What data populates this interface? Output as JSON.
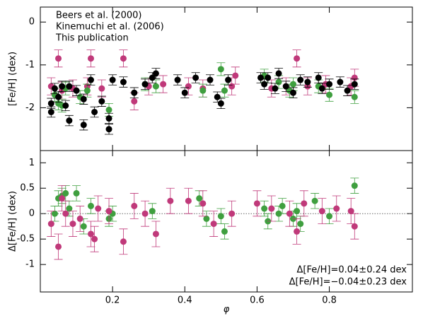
{
  "chart_data": [
    {
      "type": "scatter",
      "ylabel": "[Fe/H] (dex)",
      "xlim": [
        0,
        1.03
      ],
      "ylim": [
        -3.0,
        0.35
      ],
      "xticks": [
        0.2,
        0.4,
        0.6,
        0.8
      ],
      "xtick_labels": false,
      "yticks": [
        0,
        -1,
        -2
      ],
      "legend": "top-left",
      "series": [
        {
          "name": "Beers et al. (2000)",
          "color": "#c0397a",
          "x": [
            0.03,
            0.05,
            0.06,
            0.09,
            0.13,
            0.14,
            0.17,
            0.23,
            0.26,
            0.3,
            0.34,
            0.41,
            0.45,
            0.53,
            0.54,
            0.64,
            0.68,
            0.71,
            0.74,
            0.79,
            0.86,
            0.87
          ],
          "values": [
            -1.5,
            -0.85,
            -1.6,
            -1.55,
            -1.5,
            -0.85,
            -1.55,
            -0.85,
            -1.85,
            -1.5,
            -1.45,
            -1.5,
            -1.55,
            -1.5,
            -1.25,
            -1.55,
            -1.5,
            -0.85,
            -1.5,
            -1.45,
            -1.5,
            -1.3
          ],
          "errors": [
            0.2,
            0.2,
            0.2,
            0.2,
            0.2,
            0.2,
            0.2,
            0.2,
            0.2,
            0.2,
            0.2,
            0.2,
            0.2,
            0.2,
            0.2,
            0.2,
            0.2,
            0.2,
            0.2,
            0.2,
            0.2,
            0.2
          ]
        },
        {
          "name": "Kinemuchi et al. (2006)",
          "color": "#3f9f3f",
          "x": [
            0.04,
            0.05,
            0.06,
            0.07,
            0.11,
            0.13,
            0.19,
            0.29,
            0.32,
            0.45,
            0.5,
            0.51,
            0.62,
            0.66,
            0.69,
            0.7,
            0.77,
            0.8,
            0.87
          ],
          "values": [
            -1.7,
            -1.9,
            -1.95,
            -1.55,
            -1.75,
            -1.6,
            -2.05,
            -1.45,
            -1.5,
            -1.6,
            -1.1,
            -1.6,
            -1.25,
            -1.4,
            -1.6,
            -1.45,
            -1.5,
            -1.7,
            -1.75
          ],
          "errors": [
            0.15,
            0.15,
            0.15,
            0.15,
            0.15,
            0.15,
            0.15,
            0.15,
            0.15,
            0.15,
            0.15,
            0.15,
            0.15,
            0.15,
            0.15,
            0.15,
            0.15,
            0.15,
            0.15
          ]
        },
        {
          "name": "This publication",
          "color": "#000000",
          "x": [
            0.03,
            0.03,
            0.04,
            0.05,
            0.06,
            0.07,
            0.08,
            0.08,
            0.1,
            0.12,
            0.12,
            0.14,
            0.15,
            0.17,
            0.19,
            0.19,
            0.2,
            0.23,
            0.26,
            0.29,
            0.31,
            0.32,
            0.38,
            0.4,
            0.43,
            0.47,
            0.49,
            0.5,
            0.52,
            0.61,
            0.62,
            0.63,
            0.65,
            0.66,
            0.68,
            0.7,
            0.72,
            0.74,
            0.77,
            0.78,
            0.8,
            0.83,
            0.85,
            0.87
          ],
          "values": [
            -1.9,
            -2.1,
            -1.55,
            -1.75,
            -1.5,
            -1.95,
            -2.3,
            -1.5,
            -1.6,
            -2.4,
            -1.8,
            -1.35,
            -2.1,
            -1.85,
            -2.5,
            -2.25,
            -1.35,
            -1.4,
            -1.65,
            -1.45,
            -1.3,
            -1.2,
            -1.35,
            -1.65,
            -1.3,
            -1.35,
            -1.75,
            -1.9,
            -1.35,
            -1.3,
            -1.45,
            -1.3,
            -1.55,
            -1.2,
            -1.5,
            -1.65,
            -1.35,
            -1.4,
            -1.3,
            -1.55,
            -1.45,
            -1.4,
            -1.6,
            -1.45
          ],
          "errors": [
            0.12,
            0.12,
            0.12,
            0.12,
            0.12,
            0.12,
            0.12,
            0.12,
            0.12,
            0.12,
            0.12,
            0.12,
            0.12,
            0.12,
            0.12,
            0.12,
            0.12,
            0.12,
            0.12,
            0.12,
            0.12,
            0.12,
            0.12,
            0.12,
            0.12,
            0.12,
            0.12,
            0.12,
            0.12,
            0.12,
            0.12,
            0.12,
            0.12,
            0.12,
            0.12,
            0.12,
            0.12,
            0.12,
            0.12,
            0.12,
            0.12,
            0.12,
            0.12,
            0.12
          ]
        }
      ]
    },
    {
      "type": "scatter",
      "ylabel": "Δ[Fe/H] (dex)",
      "xlabel": "φ",
      "xlim": [
        0,
        1.03
      ],
      "ylim": [
        -1.54,
        1.24
      ],
      "xticks": [
        0.2,
        0.4,
        0.6,
        0.8
      ],
      "xtick_labels": true,
      "yticks": [
        1,
        0.5,
        0,
        -0.5,
        -1
      ],
      "reference_line": 0,
      "legend": "bottom-right",
      "series": [
        {
          "name": "Δ[Fe/H]=0.04±0.24 dex",
          "color": "#3f9f3f",
          "x": [
            0.04,
            0.05,
            0.06,
            0.07,
            0.08,
            0.1,
            0.12,
            0.14,
            0.19,
            0.2,
            0.31,
            0.44,
            0.46,
            0.5,
            0.51,
            0.62,
            0.63,
            0.66,
            0.67,
            0.7,
            0.71,
            0.72,
            0.76,
            0.8,
            0.87
          ],
          "values": [
            0.0,
            0.3,
            0.35,
            0.4,
            0.1,
            0.4,
            -0.25,
            0.15,
            -0.1,
            0.0,
            0.05,
            0.3,
            -0.1,
            -0.05,
            -0.35,
            0.1,
            -0.15,
            0.0,
            0.15,
            -0.1,
            0.05,
            -0.2,
            0.25,
            -0.05,
            0.55
          ],
          "errors": [
            0.15,
            0.15,
            0.15,
            0.15,
            0.15,
            0.15,
            0.15,
            0.15,
            0.15,
            0.15,
            0.15,
            0.15,
            0.15,
            0.15,
            0.15,
            0.15,
            0.15,
            0.15,
            0.15,
            0.15,
            0.15,
            0.15,
            0.15,
            0.15,
            0.15
          ]
        },
        {
          "name": "Δ[Fe/H]=−0.04±0.23 dex",
          "color": "#c0397a",
          "x": [
            0.03,
            0.05,
            0.06,
            0.07,
            0.09,
            0.11,
            0.14,
            0.15,
            0.16,
            0.19,
            0.23,
            0.26,
            0.29,
            0.32,
            0.36,
            0.41,
            0.45,
            0.48,
            0.53,
            0.6,
            0.64,
            0.69,
            0.71,
            0.73,
            0.78,
            0.82,
            0.86,
            0.87
          ],
          "values": [
            -0.2,
            -0.65,
            0.3,
            0.0,
            -0.2,
            -0.1,
            -0.4,
            -0.5,
            0.1,
            0.05,
            -0.55,
            0.15,
            0.0,
            -0.4,
            0.25,
            0.25,
            0.2,
            -0.2,
            0.0,
            0.2,
            0.1,
            0.0,
            -0.35,
            0.2,
            0.05,
            0.1,
            0.05,
            -0.25
          ],
          "errors": [
            0.25,
            0.25,
            0.25,
            0.25,
            0.25,
            0.25,
            0.25,
            0.25,
            0.25,
            0.25,
            0.25,
            0.25,
            0.25,
            0.25,
            0.25,
            0.25,
            0.25,
            0.25,
            0.25,
            0.25,
            0.25,
            0.25,
            0.25,
            0.25,
            0.25,
            0.25,
            0.25,
            0.25
          ]
        }
      ]
    }
  ]
}
